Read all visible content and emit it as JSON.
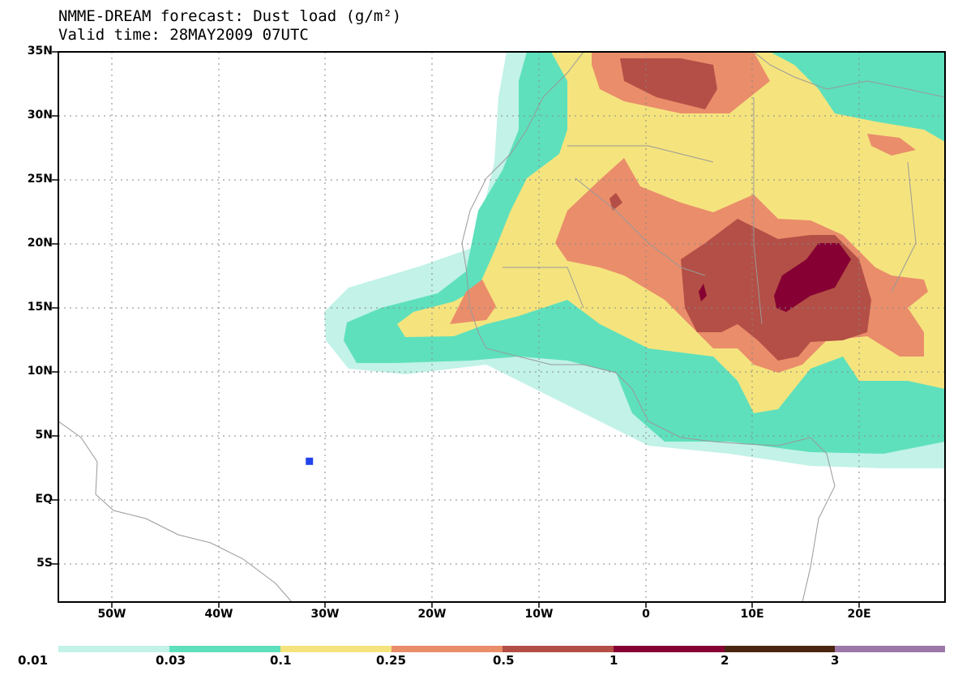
{
  "title": {
    "line1": "NMME-DREAM forecast: Dust load (g/m²)",
    "line2": "Valid time: 28MAY2009 07UTC"
  },
  "map": {
    "lat_range": [
      -8,
      35
    ],
    "lon_range": [
      -55,
      28
    ],
    "lat_ticks": [
      {
        "value": 35,
        "label": "35N"
      },
      {
        "value": 30,
        "label": "30N"
      },
      {
        "value": 25,
        "label": "25N"
      },
      {
        "value": 20,
        "label": "20N"
      },
      {
        "value": 15,
        "label": "15N"
      },
      {
        "value": 10,
        "label": "10N"
      },
      {
        "value": 5,
        "label": "5N"
      },
      {
        "value": 0,
        "label": "EQ"
      },
      {
        "value": -5,
        "label": "5S"
      }
    ],
    "lon_ticks": [
      {
        "value": -50,
        "label": "50W"
      },
      {
        "value": -40,
        "label": "40W"
      },
      {
        "value": -30,
        "label": "30W"
      },
      {
        "value": -20,
        "label": "20W"
      },
      {
        "value": -10,
        "label": "10W"
      },
      {
        "value": 0,
        "label": "0"
      },
      {
        "value": 10,
        "label": "10E"
      },
      {
        "value": 20,
        "label": "20E"
      }
    ],
    "marker": {
      "lon": -31.5,
      "lat": 3,
      "color": "#2244ee"
    }
  },
  "colorbar": {
    "levels": [
      "0.01",
      "0.03",
      "0.1",
      "0.25",
      "0.5",
      "1",
      "2",
      "3"
    ],
    "colors": [
      "#c2f2e8",
      "#5ee0bc",
      "#f5e47e",
      "#ea8d6b",
      "#b34f46",
      "#860033",
      "#4a2612",
      "#9b78a8"
    ]
  }
}
